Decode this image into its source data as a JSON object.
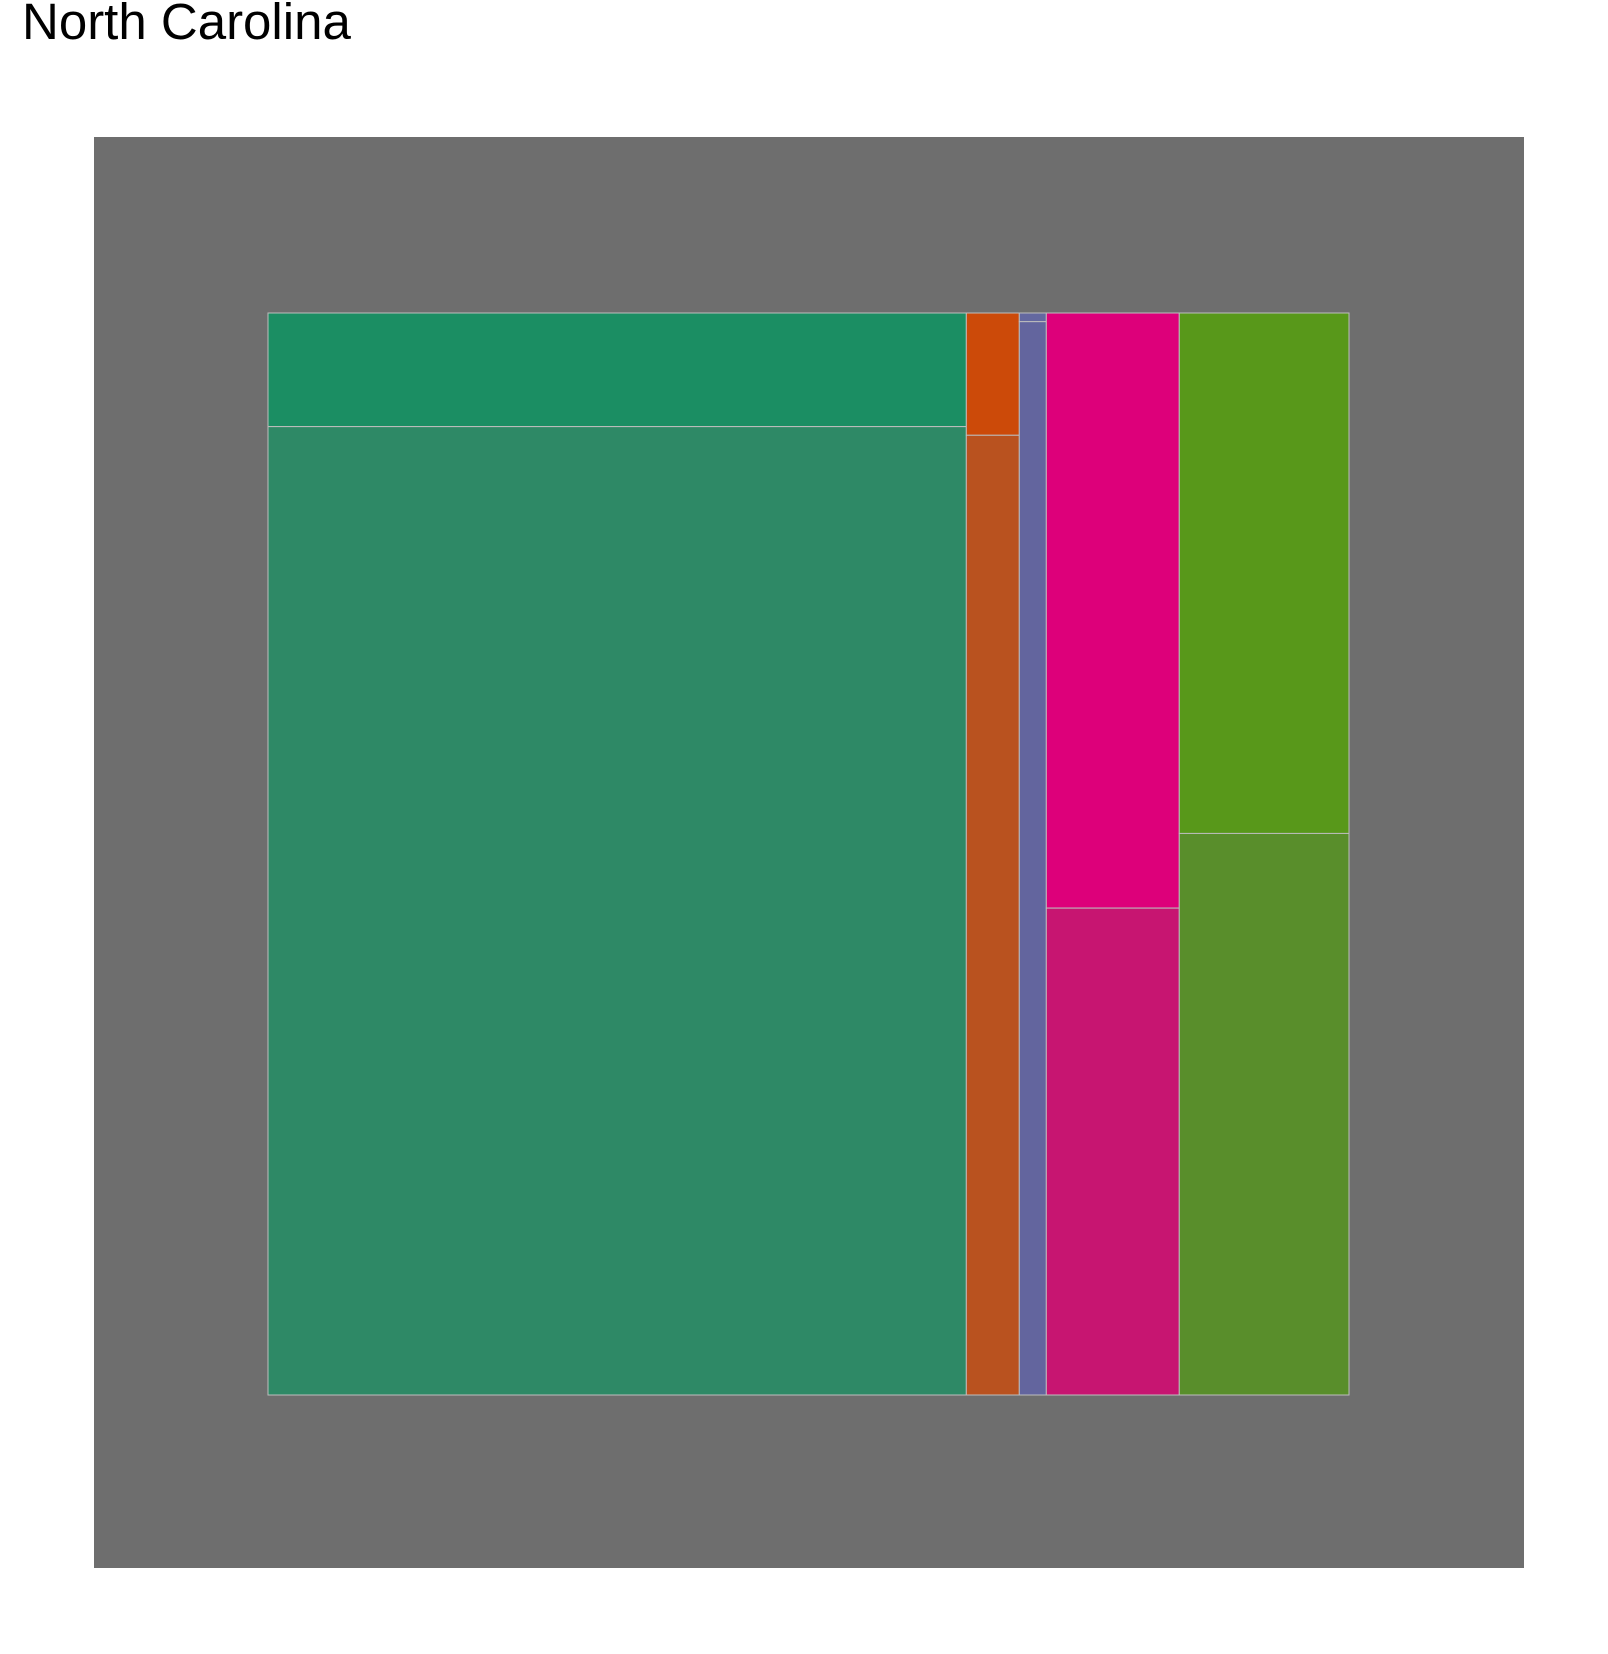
{
  "chart_data": {
    "type": "mosaic",
    "title": "North Carolina",
    "xlabel": "",
    "ylabel": "",
    "legend": "none",
    "grid": false,
    "colors": {
      "plot_background": "#6e6e6e",
      "tile_border": "#bdbdbd"
    },
    "columns": [
      {
        "share": 0.646,
        "segments": [
          {
            "share": 0.105,
            "color": "#1b8e63"
          },
          {
            "share": 0.895,
            "color": "#2e8966"
          }
        ]
      },
      {
        "share": 0.049,
        "segments": [
          {
            "share": 0.113,
            "color": "#cc4a09"
          },
          {
            "share": 0.887,
            "color": "#b9521f"
          }
        ]
      },
      {
        "share": 0.025,
        "segments": [
          {
            "share": 0.008,
            "color": "#6468a0"
          },
          {
            "share": 0.992,
            "color": "#63659e"
          }
        ]
      },
      {
        "share": 0.123,
        "segments": [
          {
            "share": 0.55,
            "color": "#dd007a"
          },
          {
            "share": 0.45,
            "color": "#c71571"
          }
        ]
      },
      {
        "share": 0.157,
        "segments": [
          {
            "share": 0.481,
            "color": "#58981a"
          },
          {
            "share": 0.519,
            "color": "#598e2b"
          }
        ]
      }
    ]
  }
}
